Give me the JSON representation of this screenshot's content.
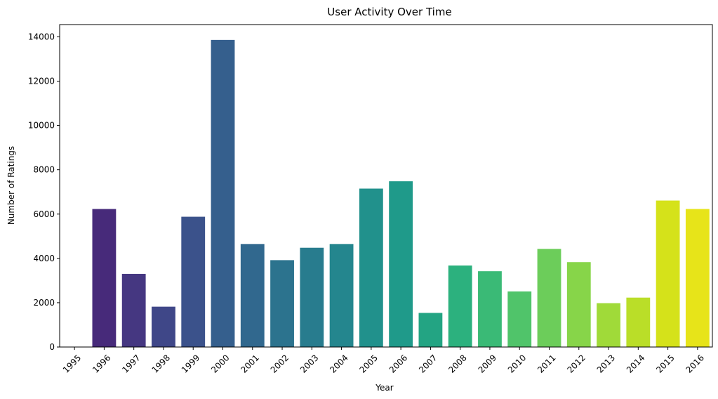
{
  "chart_data": {
    "type": "bar",
    "title": "User Activity Over Time",
    "xlabel": "Year",
    "ylabel": "Number of Ratings",
    "categories": [
      "1995",
      "1996",
      "1997",
      "1998",
      "1999",
      "2000",
      "2001",
      "2002",
      "2003",
      "2004",
      "2005",
      "2006",
      "2007",
      "2008",
      "2009",
      "2010",
      "2011",
      "2012",
      "2013",
      "2014",
      "2015",
      "2016"
    ],
    "values": [
      3,
      6230,
      3300,
      1820,
      5880,
      13860,
      4650,
      3920,
      4480,
      4650,
      7150,
      7480,
      1540,
      3680,
      3420,
      2510,
      4430,
      3830,
      1980,
      2230,
      6610,
      6230
    ],
    "yticks": [
      0,
      2000,
      4000,
      6000,
      8000,
      10000,
      12000,
      14000
    ],
    "ylim": [
      0,
      14553
    ],
    "grid": false,
    "legend": "none",
    "palette": "viridis",
    "colors": [
      "#440154",
      "#472a7a",
      "#453781",
      "#3f4788",
      "#3b528b",
      "#355f8d",
      "#31688e",
      "#2c738e",
      "#287c8e",
      "#24868e",
      "#21918c",
      "#1f9a8a",
      "#23a483",
      "#2cb17e",
      "#3aba76",
      "#50c46a",
      "#6ccd5a",
      "#87d549",
      "#a0da39",
      "#bade28",
      "#d5e21a",
      "#e7e419"
    ]
  }
}
